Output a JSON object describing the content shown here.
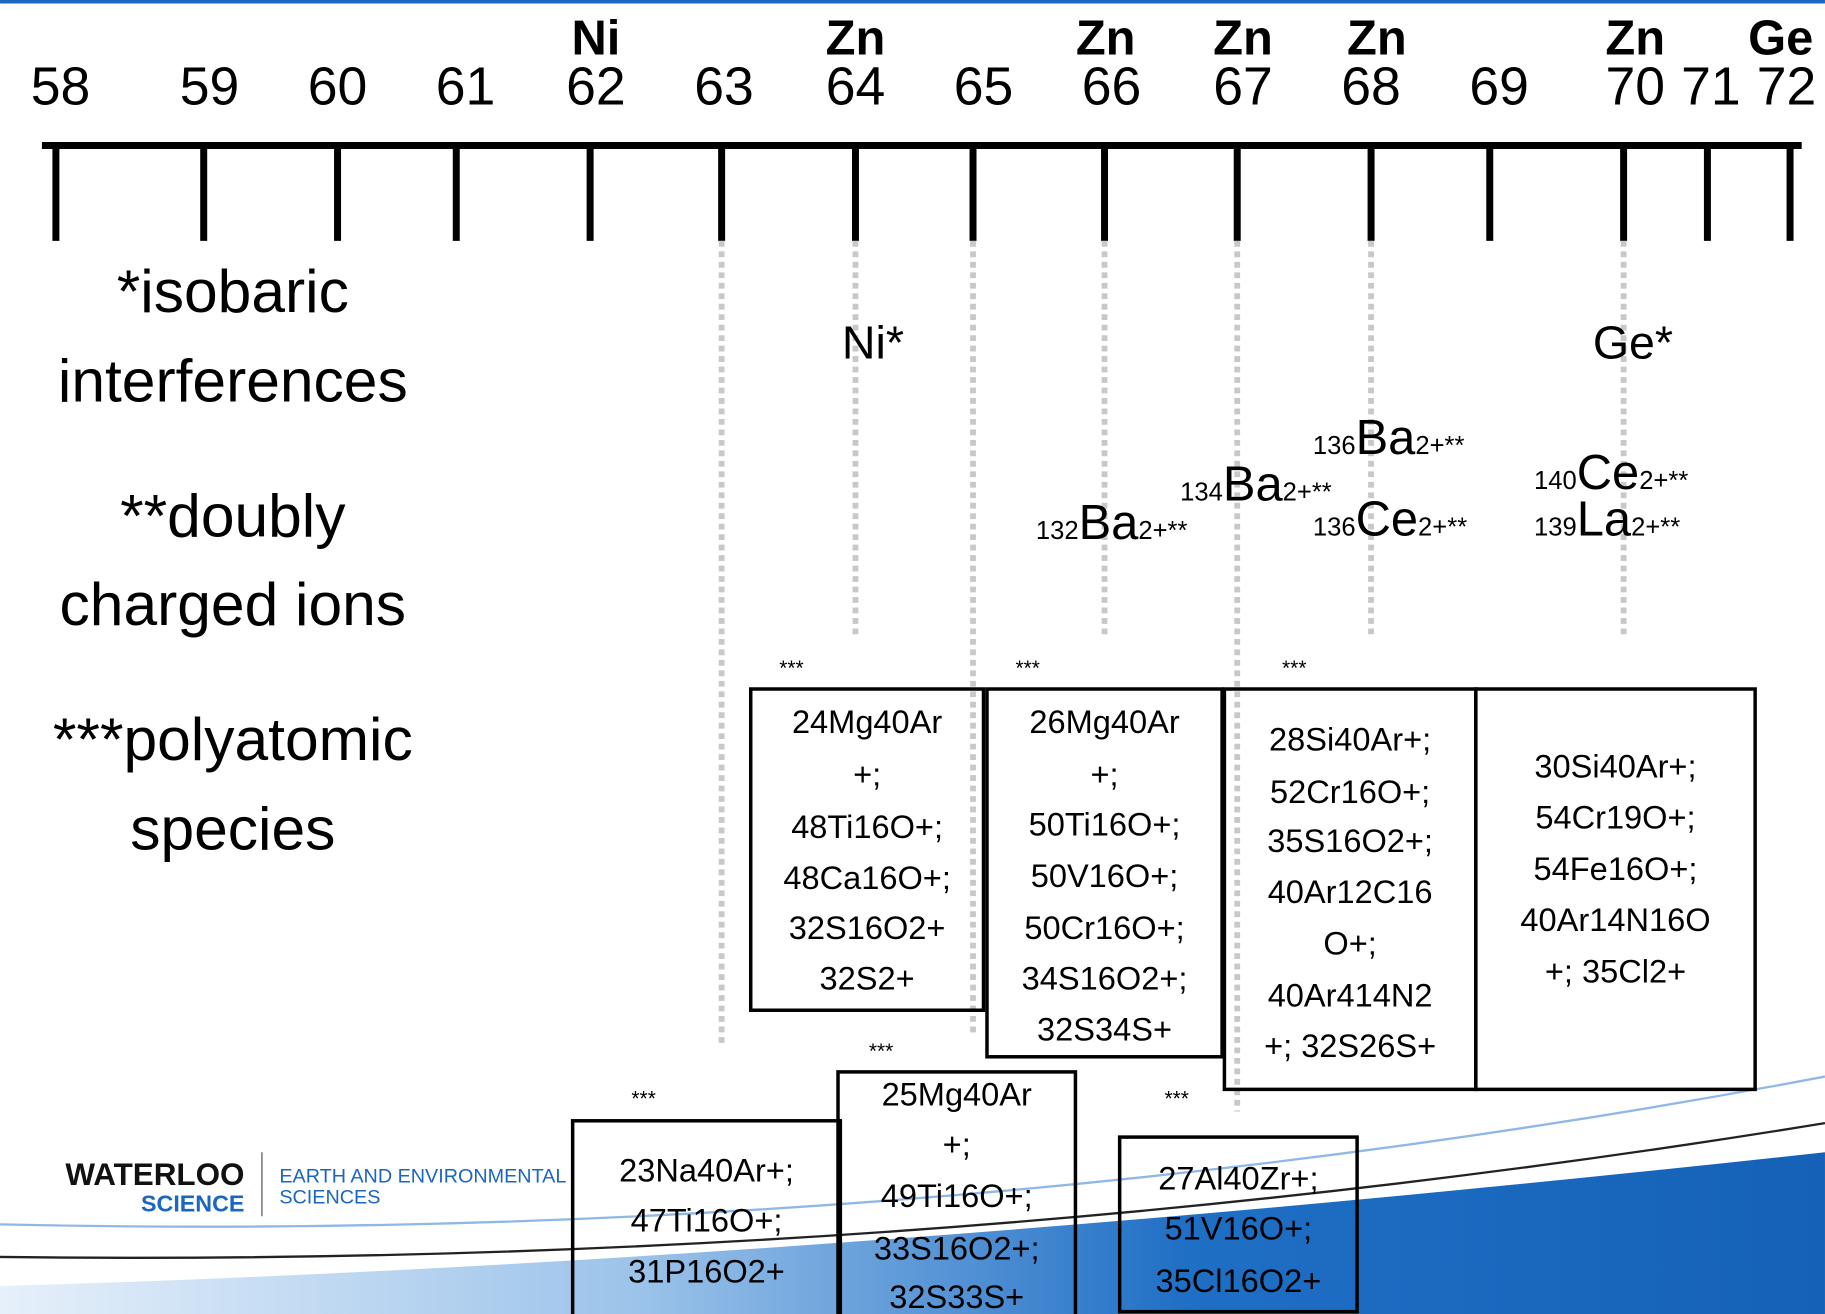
{
  "mass_axis": {
    "masses": [
      "58",
      "59",
      "60",
      "61",
      "62",
      "63",
      "64",
      "65",
      "66",
      "67",
      "68",
      "69",
      "70",
      "71",
      "72"
    ],
    "elements": [
      "Ni",
      "Zn",
      "Zn",
      "Zn",
      "Zn",
      "Zn",
      "Ge"
    ]
  },
  "legend": [
    "*isobaric",
    "interferences",
    "**doubly",
    "charged ions",
    "***polyatomic",
    "species"
  ],
  "isobaric_interferences": [
    "Ni*",
    "Ge*"
  ],
  "doubly_charged_ions": [
    {
      "mass": "132",
      "symbol": "Ba",
      "charge": "2+**"
    },
    {
      "mass": "134",
      "symbol": "Ba",
      "charge": "2+**"
    },
    {
      "mass": "136",
      "symbol": "Ba",
      "charge": "2+**"
    },
    {
      "mass": "136",
      "symbol": "Ce",
      "charge": "2+**"
    },
    {
      "mass": "140",
      "symbol": "Ce",
      "charge": "2+**"
    },
    {
      "mass": "139",
      "symbol": "La",
      "charge": "2+**"
    }
  ],
  "polyatomic_boxes": [
    {
      "marker": "***",
      "lines": [
        "24Mg40Ar",
        "+;",
        "48Ti16O+;",
        "48Ca16O+;",
        "32S16O2+",
        "32S2+"
      ]
    },
    {
      "marker": "***",
      "lines": [
        "26Mg40Ar",
        "+;",
        "50Ti16O+;",
        "50V16O+;",
        "50Cr16O+;",
        "34S16O2+;",
        "32S34S+"
      ]
    },
    {
      "marker": "***",
      "lines": [
        "28Si40Ar+;",
        "52Cr16O+;",
        "35S16O2+;",
        "40Ar12C16",
        "O+;",
        "40Ar414N2",
        "+; 32S26S+"
      ]
    },
    {
      "lines": [
        "30Si40Ar+;",
        "54Cr19O+;",
        "54Fe16O+;",
        "40Ar14N16O",
        "+; 35Cl2+"
      ]
    },
    {
      "marker": "***",
      "lines": [
        "23Na40Ar+;",
        "47Ti16O+;",
        "31P16O2+"
      ]
    },
    {
      "marker": "***",
      "lines": [
        "25Mg40Ar",
        "+;",
        "49Ti16O+;",
        "33S16O2+;",
        "32S33S+"
      ]
    },
    {
      "marker": "***",
      "lines": [
        "27Al40Zr+;",
        "51V16O+;",
        "35Cl16O2+"
      ]
    }
  ],
  "footer": {
    "logo": [
      "WATERLOO",
      "SCIENCE"
    ],
    "department": [
      "EARTH AND ENVIRONMENTAL",
      "SCIENCES"
    ]
  }
}
